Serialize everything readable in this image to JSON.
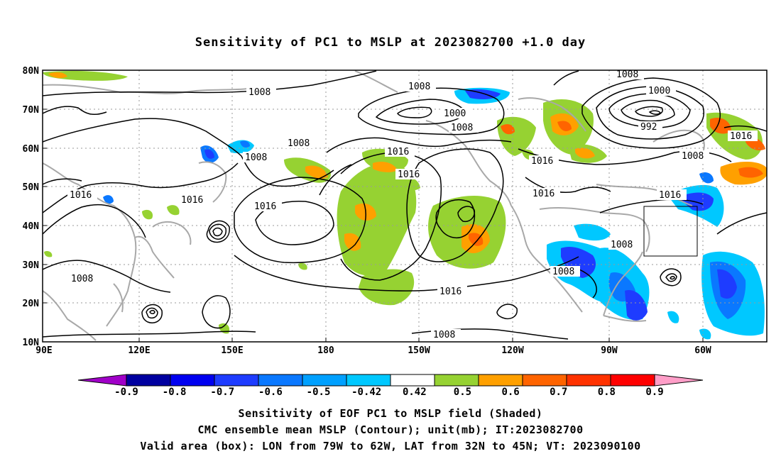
{
  "title": "Sensitivity of PC1 to MSLP at 2023082700 +1.0 day",
  "axes": {
    "lat_labels": [
      "80N",
      "70N",
      "60N",
      "50N",
      "40N",
      "30N",
      "20N",
      "10N"
    ],
    "lon_labels": [
      "90E",
      "120E",
      "150E",
      "180",
      "150W",
      "120W",
      "90W",
      "60W"
    ]
  },
  "contour_labels": [
    {
      "id": "c1",
      "text": "1008"
    },
    {
      "id": "c2",
      "text": "1008"
    },
    {
      "id": "c3",
      "text": "1000"
    },
    {
      "id": "c4",
      "text": "1008"
    },
    {
      "id": "c5",
      "text": "1008"
    },
    {
      "id": "c6",
      "text": "1000"
    },
    {
      "id": "c7",
      "text": "992"
    },
    {
      "id": "c8",
      "text": "1016"
    },
    {
      "id": "c9",
      "text": "1008"
    },
    {
      "id": "c10",
      "text": "1008"
    },
    {
      "id": "c11",
      "text": "1016"
    },
    {
      "id": "c12",
      "text": "1016"
    },
    {
      "id": "c13",
      "text": "1016"
    },
    {
      "id": "c14",
      "text": "1016"
    },
    {
      "id": "c15",
      "text": "1016"
    },
    {
      "id": "c16",
      "text": "1016"
    },
    {
      "id": "c17",
      "text": "1016"
    },
    {
      "id": "c18",
      "text": "1016"
    },
    {
      "id": "c19",
      "text": "1008"
    },
    {
      "id": "c20",
      "text": "1008"
    },
    {
      "id": "c21",
      "text": "1008"
    },
    {
      "id": "c22",
      "text": "1016"
    },
    {
      "id": "c23",
      "text": "1008"
    }
  ],
  "colorbar": {
    "labels": [
      "-0.9",
      "-0.8",
      "-0.7",
      "-0.6",
      "-0.5",
      "-0.42",
      "0.42",
      "0.5",
      "0.6",
      "0.7",
      "0.8",
      "0.9"
    ],
    "colors": [
      "#a000c8",
      "#0000a0",
      "#0000f0",
      "#1e3cff",
      "#0a78ff",
      "#00a0ff",
      "#00c8ff",
      "#ffffff",
      "#96d232",
      "#ffa000",
      "#ff6400",
      "#ff3200",
      "#ff0000",
      "#ff9ec8"
    ]
  },
  "captions": {
    "line1": "Sensitivity of EOF PC1 to MSLP field (Shaded)",
    "line2": "CMC ensemble mean MSLP (Contour); unit(mb); IT:2023082700",
    "line3": "Valid area (box): LON from 79W to 62W, LAT from 32N to 45N; VT: 2023090100"
  }
}
